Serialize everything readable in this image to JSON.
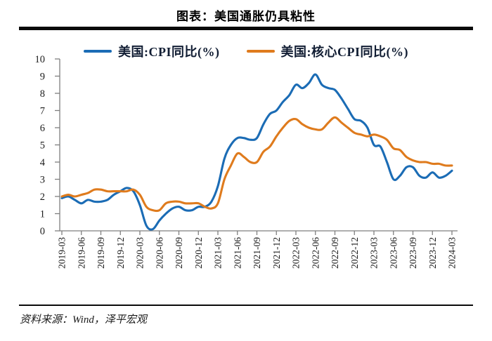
{
  "header": {
    "title": "图表：美国通胀仍具粘性"
  },
  "footer": {
    "source": "资料来源：Wind，泽平宏观"
  },
  "chart_data": {
    "type": "line",
    "title": "图表：美国通胀仍具粘性",
    "xlabel": "",
    "ylabel": "",
    "ylim": [
      0,
      10
    ],
    "y_ticks": [
      0,
      1,
      2,
      3,
      4,
      5,
      6,
      7,
      8,
      9,
      10
    ],
    "grid": false,
    "legend_position": "top",
    "axis_color": "#7f7f7f",
    "tick_label_color": "#1c1c1c",
    "x": [
      "2019-03",
      "2019-04",
      "2019-05",
      "2019-06",
      "2019-07",
      "2019-08",
      "2019-09",
      "2019-10",
      "2019-11",
      "2019-12",
      "2020-01",
      "2020-02",
      "2020-03",
      "2020-04",
      "2020-05",
      "2020-06",
      "2020-07",
      "2020-08",
      "2020-09",
      "2020-10",
      "2020-11",
      "2020-12",
      "2021-01",
      "2021-02",
      "2021-03",
      "2021-04",
      "2021-05",
      "2021-06",
      "2021-07",
      "2021-08",
      "2021-09",
      "2021-10",
      "2021-11",
      "2021-12",
      "2022-01",
      "2022-02",
      "2022-03",
      "2022-04",
      "2022-05",
      "2022-06",
      "2022-07",
      "2022-08",
      "2022-09",
      "2022-10",
      "2022-11",
      "2022-12",
      "2023-01",
      "2023-02",
      "2023-03",
      "2023-04",
      "2023-05",
      "2023-06",
      "2023-07",
      "2023-08",
      "2023-09",
      "2023-10",
      "2023-11",
      "2023-12",
      "2024-01",
      "2024-02",
      "2024-03"
    ],
    "x_tick_labels": [
      "2019-03",
      "2019-06",
      "2019-09",
      "2019-12",
      "2020-03",
      "2020-06",
      "2020-09",
      "2020-12",
      "2021-03",
      "2021-06",
      "2021-09",
      "2021-12",
      "2022-03",
      "2022-06",
      "2022-09",
      "2022-12",
      "2023-03",
      "2023-06",
      "2023-09",
      "2023-12",
      "2024-03"
    ],
    "series": [
      {
        "id": "cpi-line",
        "name": "美国:CPI同比(%)",
        "color": "#1b6cb5",
        "values": [
          1.9,
          2.0,
          1.8,
          1.6,
          1.8,
          1.7,
          1.7,
          1.8,
          2.1,
          2.3,
          2.5,
          2.3,
          1.5,
          0.3,
          0.1,
          0.6,
          1.0,
          1.3,
          1.4,
          1.2,
          1.2,
          1.4,
          1.4,
          1.7,
          2.6,
          4.2,
          5.0,
          5.4,
          5.4,
          5.3,
          5.4,
          6.2,
          6.8,
          7.0,
          7.5,
          7.9,
          8.5,
          8.3,
          8.6,
          9.1,
          8.5,
          8.3,
          8.2,
          7.7,
          7.1,
          6.5,
          6.4,
          6.0,
          5.0,
          4.9,
          4.0,
          3.0,
          3.2,
          3.7,
          3.7,
          3.2,
          3.1,
          3.4,
          3.1,
          3.2,
          3.5
        ]
      },
      {
        "id": "core-cpi-line",
        "name": "美国:核心CPI同比(%)",
        "color": "#df7b1d",
        "values": [
          2.0,
          2.1,
          2.0,
          2.1,
          2.2,
          2.4,
          2.4,
          2.3,
          2.3,
          2.3,
          2.3,
          2.4,
          2.1,
          1.4,
          1.2,
          1.2,
          1.6,
          1.7,
          1.7,
          1.6,
          1.6,
          1.6,
          1.4,
          1.3,
          1.6,
          3.0,
          3.8,
          4.5,
          4.3,
          4.0,
          4.0,
          4.6,
          4.9,
          5.5,
          6.0,
          6.4,
          6.5,
          6.2,
          6.0,
          5.9,
          5.9,
          6.3,
          6.6,
          6.3,
          6.0,
          5.7,
          5.6,
          5.5,
          5.6,
          5.5,
          5.3,
          4.8,
          4.7,
          4.3,
          4.1,
          4.0,
          4.0,
          3.9,
          3.9,
          3.8,
          3.8
        ]
      }
    ]
  }
}
